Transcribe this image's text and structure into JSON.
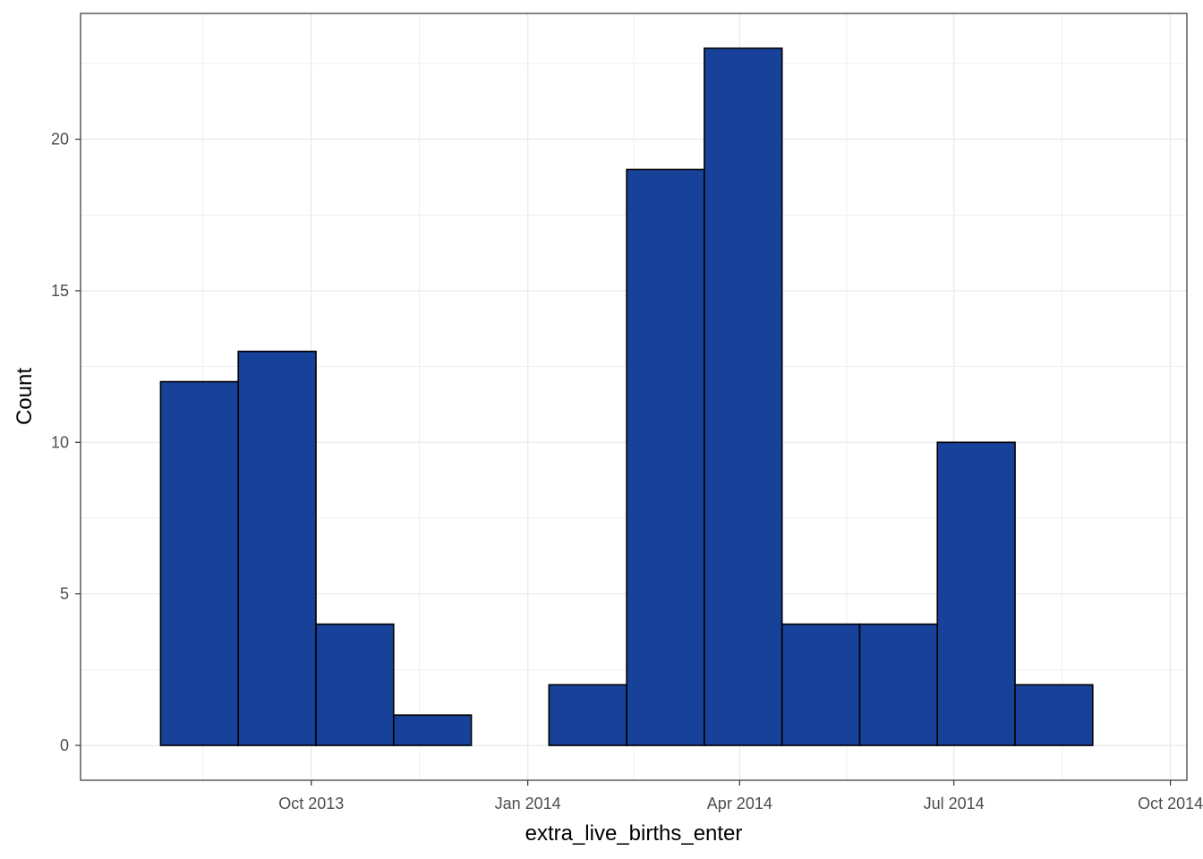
{
  "chart_data": {
    "type": "bar",
    "subtype": "histogram",
    "title": "",
    "xlabel": "extra_live_births_enter",
    "ylabel": "Count",
    "bins": [
      {
        "start": "2013-07-29",
        "end": "2013-08-31",
        "count": 12
      },
      {
        "start": "2013-08-31",
        "end": "2013-10-03",
        "count": 13
      },
      {
        "start": "2013-10-03",
        "end": "2013-11-05",
        "count": 4
      },
      {
        "start": "2013-11-05",
        "end": "2013-12-08",
        "count": 1
      },
      {
        "start": "2013-12-08",
        "end": "2014-01-10",
        "count": 0
      },
      {
        "start": "2014-01-10",
        "end": "2014-02-12",
        "count": 2
      },
      {
        "start": "2014-02-12",
        "end": "2014-03-17",
        "count": 19
      },
      {
        "start": "2014-03-17",
        "end": "2014-04-19",
        "count": 23
      },
      {
        "start": "2014-04-19",
        "end": "2014-05-22",
        "count": 4
      },
      {
        "start": "2014-05-22",
        "end": "2014-06-24",
        "count": 4
      },
      {
        "start": "2014-06-24",
        "end": "2014-07-27",
        "count": 10
      },
      {
        "start": "2014-07-27",
        "end": "2014-08-29",
        "count": 2
      }
    ],
    "x_ticks": [
      {
        "label": "Oct 2013",
        "date": "2013-10-01"
      },
      {
        "label": "Jan 2014",
        "date": "2014-01-01"
      },
      {
        "label": "Apr 2014",
        "date": "2014-04-01"
      },
      {
        "label": "Jul 2014",
        "date": "2014-07-01"
      },
      {
        "label": "Oct 2014",
        "date": "2014-10-01"
      }
    ],
    "y_ticks": [
      0,
      5,
      10,
      15,
      20
    ],
    "xlim": [
      "2013-06-25",
      "2014-10-08"
    ],
    "ylim": [
      -1.15,
      24.15
    ],
    "grid": true,
    "legend": "none",
    "colors": {
      "bar_fill": "#184299",
      "bar_stroke": "#000000",
      "grid": "#ebebeb",
      "panel_border": "#333333"
    }
  }
}
